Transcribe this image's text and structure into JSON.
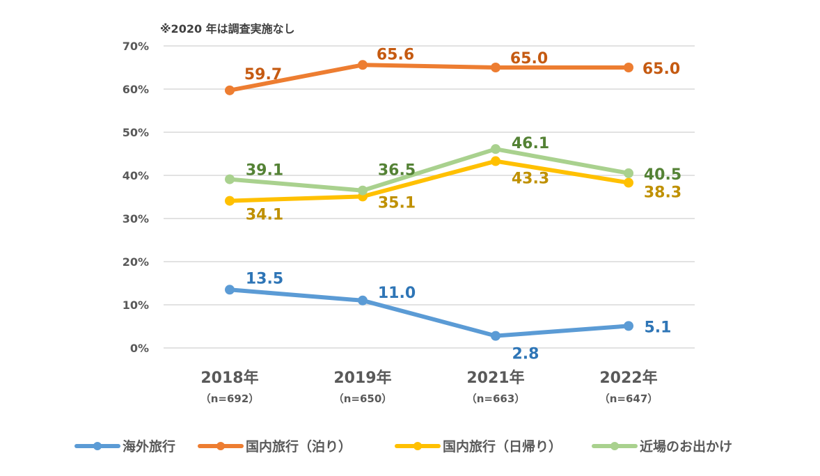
{
  "chart_data": {
    "type": "line",
    "note": "※2020 年は調査実施なし",
    "categories": [
      "2018年",
      "2019年",
      "2021年",
      "2022年"
    ],
    "category_sublabels": [
      "（n=692）",
      "（n=650）",
      "（n=663）",
      "（n=647）"
    ],
    "ylim": [
      0,
      70
    ],
    "yticks": [
      "0%",
      "10%",
      "20%",
      "30%",
      "40%",
      "50%",
      "60%",
      "70%"
    ],
    "grid": true,
    "legend_placement": "bottom",
    "series": [
      {
        "name": "海外旅行",
        "values": [
          13.5,
          11.0,
          2.8,
          5.1
        ],
        "labels": [
          "13.5",
          "11.0",
          "2.8",
          "5.1"
        ],
        "color": "#5b9bd5",
        "label_color": "#2e75b6"
      },
      {
        "name": "国内旅行（泊り）",
        "values": [
          59.7,
          65.6,
          65.0,
          65.0
        ],
        "labels": [
          "59.7",
          "65.6",
          "65.0",
          "65.0"
        ],
        "color": "#ed7d31",
        "label_color": "#c55a11"
      },
      {
        "name": "国内旅行（日帰り）",
        "values": [
          34.1,
          35.1,
          43.3,
          38.3
        ],
        "labels": [
          "34.1",
          "35.1",
          "43.3",
          "38.3"
        ],
        "color": "#ffc000",
        "label_color": "#bf9000"
      },
      {
        "name": "近場のお出かけ",
        "values": [
          39.1,
          36.5,
          46.1,
          40.5
        ],
        "labels": [
          "39.1",
          "36.5",
          "46.1",
          "40.5"
        ],
        "color": "#a9d18e",
        "label_color": "#548235"
      }
    ]
  }
}
